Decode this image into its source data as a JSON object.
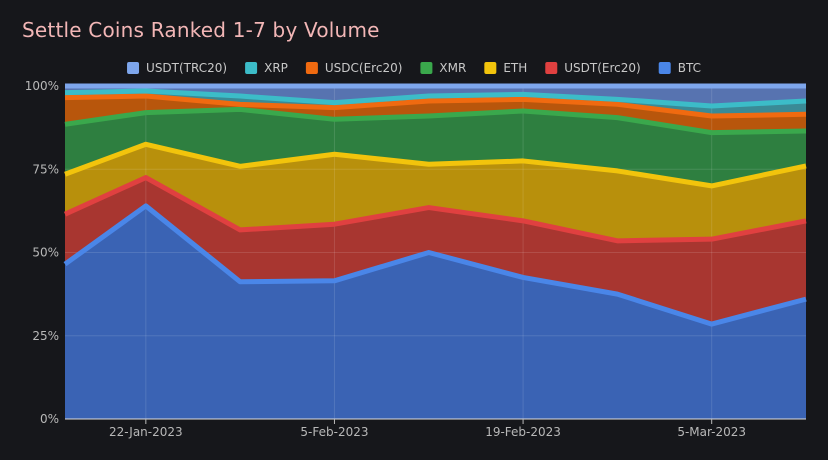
{
  "chart_data": {
    "type": "area",
    "stacked": true,
    "normalized": true,
    "title": "Settle Coins Ranked 1-7 by Volume",
    "xlabel": "",
    "ylabel": "",
    "ylim": [
      0,
      100
    ],
    "grid": true,
    "legend_position": "top",
    "x": [
      "2023-01-16",
      "2023-01-22",
      "2023-01-29",
      "2023-02-05",
      "2023-02-12",
      "2023-02-19",
      "2023-02-26",
      "2023-03-05",
      "2023-03-12"
    ],
    "x_ticks": [
      {
        "date": "2023-01-22",
        "label": "22-Jan-2023"
      },
      {
        "date": "2023-02-05",
        "label": "5-Feb-2023"
      },
      {
        "date": "2023-02-19",
        "label": "19-Feb-2023"
      },
      {
        "date": "2023-03-05",
        "label": "5-Mar-2023"
      }
    ],
    "y_ticks": [
      {
        "value": 0,
        "label": "0%"
      },
      {
        "value": 25,
        "label": "25%"
      },
      {
        "value": 50,
        "label": "50%"
      },
      {
        "value": 75,
        "label": "75%"
      },
      {
        "value": 100,
        "label": "100%"
      }
    ],
    "series": [
      {
        "name": "BTC",
        "color": "#4a86e8",
        "fill": "#3a63b4",
        "values": [
          46.5,
          64,
          41,
          41.5,
          50,
          42.5,
          37.5,
          28.5,
          36
        ]
      },
      {
        "name": "USDT(Erc20)",
        "color": "#e04040",
        "fill": "#a83630",
        "values": [
          15,
          8.5,
          15.5,
          17,
          13.5,
          17,
          16,
          25.5,
          23.5
        ]
      },
      {
        "name": "ETH",
        "color": "#f2c40c",
        "fill": "#b8900c",
        "values": [
          12,
          10,
          19,
          21,
          13,
          18,
          21,
          16,
          16.5
        ]
      },
      {
        "name": "XMR",
        "color": "#3aa84c",
        "fill": "#2e7f40",
        "values": [
          15,
          9.5,
          17,
          10.5,
          14.5,
          15,
          16,
          16,
          10.5
        ]
      },
      {
        "name": "USDC(Erc20)",
        "color": "#f06a10",
        "fill": "#b8560c",
        "values": [
          8,
          5,
          1.5,
          3.5,
          4.5,
          3.5,
          4,
          5,
          5
        ]
      },
      {
        "name": "XRP",
        "color": "#3cbcc8",
        "fill": "#3a8a96",
        "values": [
          1.5,
          1.5,
          2.5,
          1.5,
          1.5,
          1.5,
          1.5,
          3,
          4
        ]
      },
      {
        "name": "USDT(TRC20)",
        "color": "#7ea6ec",
        "fill": "#5773b0",
        "values": [
          2,
          1.5,
          3,
          5,
          3,
          2.5,
          4,
          6,
          4.5
        ]
      }
    ],
    "legend_order": [
      "USDT(TRC20)",
      "XRP",
      "USDC(Erc20)",
      "XMR",
      "ETH",
      "USDT(Erc20)",
      "BTC"
    ]
  }
}
